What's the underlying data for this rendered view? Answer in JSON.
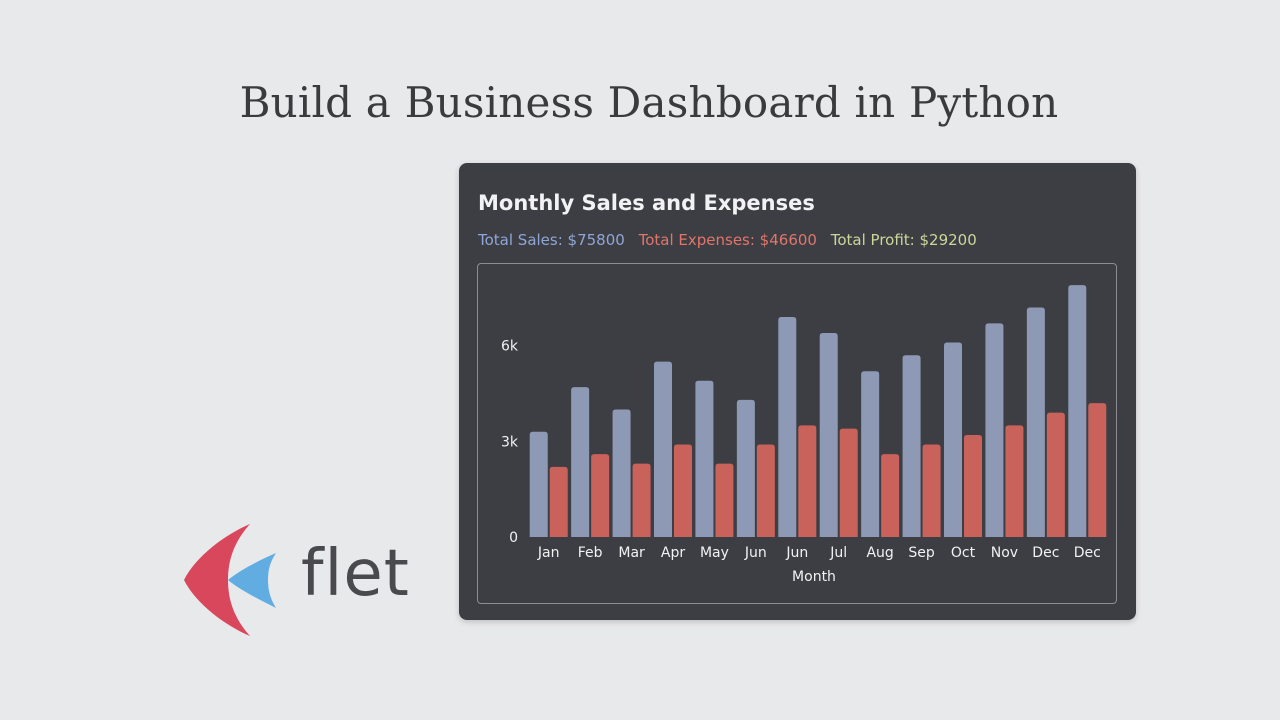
{
  "page": {
    "title": "Build a Business Dashboard in Python"
  },
  "logo": {
    "text": "flet",
    "colors": {
      "red": "#d9475d",
      "blue": "#5aa9e0"
    }
  },
  "card": {
    "title": "Monthly Sales and Expenses",
    "totals": {
      "sales": "Total Sales: $75800",
      "expenses": "Total Expenses: $46600",
      "profit": "Total Profit: $29200"
    },
    "colors": {
      "background": "#3d3e43",
      "sales_text": "#8fa6d6",
      "expenses_text": "#e0756b",
      "profit_text": "#c9d79a"
    }
  },
  "chart_data": {
    "type": "bar",
    "title": "Monthly Sales and Expenses",
    "xlabel": "Month",
    "ylabel": "",
    "categories": [
      "Jan",
      "Feb",
      "Mar",
      "Apr",
      "May",
      "Jun",
      "Jun",
      "Jul",
      "Aug",
      "Sep",
      "Oct",
      "Nov",
      "Dec",
      "Dec"
    ],
    "series": [
      {
        "color": "#8e9ab5",
        "values": [
          3300,
          4700,
          4000,
          5500,
          4900,
          4300,
          6900,
          6400,
          5200,
          5700,
          6100,
          6700,
          7200,
          7900
        ]
      },
      {
        "color": "#c8625a",
        "values": [
          2200,
          2600,
          2300,
          2900,
          2300,
          2900,
          3500,
          3400,
          2600,
          2900,
          3200,
          3500,
          3900,
          4200
        ]
      }
    ],
    "yticks": [
      {
        "value": 0,
        "label": "0"
      },
      {
        "value": 3000,
        "label": "3k"
      },
      {
        "value": 6000,
        "label": "6k"
      }
    ],
    "ylim": [
      0,
      8500
    ],
    "grid": false,
    "legend": "none"
  }
}
